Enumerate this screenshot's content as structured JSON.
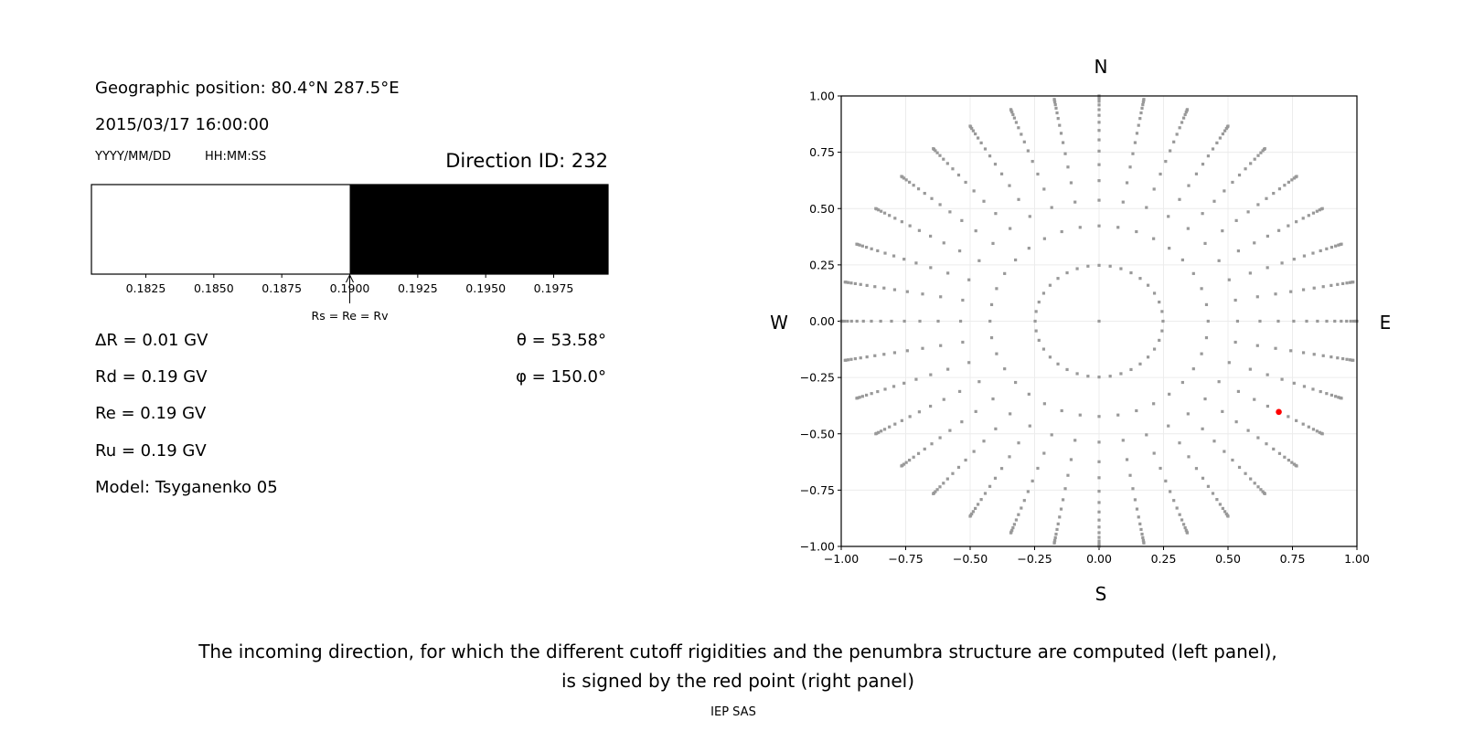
{
  "left_panel": {
    "geo_position": "Geographic position: 80.4°N 287.5°E",
    "datetime": "2015/03/17 16:00:00",
    "date_format_hint": "YYYY/MM/DD",
    "time_format_hint": "HH:MM:SS",
    "direction_id": "Direction ID: 232",
    "delta_r": "ΔR = 0.01 GV",
    "rd": "Rd = 0.19 GV",
    "re": "Re = 0.19 GV",
    "ru": "Ru = 0.19 GV",
    "model": "Model: Tsyganenko 05",
    "theta": "θ = 53.58°",
    "phi": "φ = 150.0°"
  },
  "right_panel": {
    "north": "N",
    "south": "S",
    "west": "W",
    "east": "E"
  },
  "caption": {
    "line1": "The incoming direction, for which the different cutoff rigidities and the penumbra structure are computed (left panel),",
    "line2": "is signed by the red point (right panel)",
    "credit": "IEP SAS"
  },
  "chart_data": [
    {
      "type": "bar",
      "description_role": "penumbra",
      "xlim": [
        0.1805,
        0.1995
      ],
      "x_ticks": [
        "0.1825",
        "0.1850",
        "0.1875",
        "0.1900",
        "0.1925",
        "0.1950",
        "0.1975"
      ],
      "segments": [
        {
          "from": 0.1805,
          "to": 0.19,
          "color": "#ffffff"
        },
        {
          "from": 0.19,
          "to": 0.1995,
          "color": "#000000"
        }
      ],
      "annotation": {
        "text": "Rs = Re = Rv",
        "x": 0.19
      }
    },
    {
      "type": "scatter",
      "xlim": [
        -1,
        1
      ],
      "ylim": [
        -1,
        1
      ],
      "grid": true,
      "x_ticks": [
        "−1.00",
        "−0.75",
        "−0.50",
        "−0.25",
        "0.00",
        "0.25",
        "0.50",
        "0.75",
        "1.00"
      ],
      "y_ticks": [
        "1.00",
        "0.75",
        "0.50",
        "0.25",
        "0.00",
        "−0.25",
        "−0.50",
        "−0.75",
        "−1.00"
      ],
      "direction_grid": {
        "color": "#999999",
        "center": [
          0,
          0
        ],
        "ring_radii": [
          0.248,
          0.423,
          0.537,
          0.624,
          0.695,
          0.755,
          0.805,
          0.847,
          0.883,
          0.914,
          0.939,
          0.96,
          0.976,
          0.988,
          0.996,
          1.0
        ],
        "azimuth_step_deg": 10
      },
      "selected_point": {
        "x": 0.697,
        "y": -0.403,
        "color": "#ff0000"
      }
    }
  ]
}
